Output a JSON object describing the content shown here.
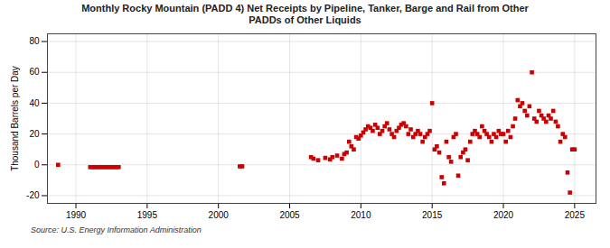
{
  "chart_data": {
    "type": "scatter",
    "title": "Monthly Rocky Mountain (PADD 4) Net Receipts by Pipeline, Tanker, Barge and Rail from Other\nPADDs of Other Liquids",
    "ylabel": "Thousand Barrels per Day",
    "annotations": [
      "Source: U.S. Energy Information Administration"
    ],
    "xlim": [
      1988.0,
      2026.5
    ],
    "ylim": [
      -25,
      85
    ],
    "xticks": [
      1990,
      1995,
      2000,
      2005,
      2010,
      2015,
      2020,
      2025
    ],
    "yticks": [
      -20,
      0,
      20,
      40,
      60,
      80
    ],
    "color": "#CC0000",
    "marker": "square",
    "grid": true,
    "x": [
      1988.75,
      1991.0,
      1991.17,
      1991.33,
      1991.5,
      1991.67,
      1991.83,
      1992.0,
      1992.17,
      1992.33,
      1992.5,
      1992.67,
      1992.83,
      1993.0,
      2001.5,
      2001.67,
      2006.5,
      2006.67,
      2007.0,
      2007.5,
      2007.83,
      2008.0,
      2008.33,
      2008.67,
      2008.83,
      2009.0,
      2009.17,
      2009.33,
      2009.5,
      2009.67,
      2009.83,
      2010.0,
      2010.17,
      2010.33,
      2010.5,
      2010.67,
      2010.83,
      2011.0,
      2011.17,
      2011.33,
      2011.5,
      2011.67,
      2011.83,
      2012.0,
      2012.17,
      2012.33,
      2012.5,
      2012.67,
      2012.83,
      2013.0,
      2013.17,
      2013.33,
      2013.5,
      2013.67,
      2013.83,
      2014.0,
      2014.17,
      2014.33,
      2014.5,
      2014.67,
      2014.83,
      2015.0,
      2015.17,
      2015.33,
      2015.5,
      2015.67,
      2015.83,
      2016.0,
      2016.17,
      2016.33,
      2016.5,
      2016.67,
      2016.83,
      2017.0,
      2017.17,
      2017.33,
      2017.5,
      2017.67,
      2017.83,
      2018.0,
      2018.17,
      2018.33,
      2018.5,
      2018.67,
      2018.83,
      2019.0,
      2019.17,
      2019.33,
      2019.5,
      2019.67,
      2019.83,
      2020.0,
      2020.17,
      2020.33,
      2020.5,
      2020.67,
      2020.83,
      2021.0,
      2021.17,
      2021.33,
      2021.5,
      2021.67,
      2021.83,
      2022.0,
      2022.17,
      2022.33,
      2022.5,
      2022.67,
      2022.83,
      2023.0,
      2023.17,
      2023.33,
      2023.5,
      2023.67,
      2023.83,
      2024.0,
      2024.17,
      2024.33,
      2024.5,
      2024.67,
      2024.83,
      2025.0
    ],
    "values": [
      0.0,
      -1.5,
      -1.5,
      -1.5,
      -1.5,
      -1.5,
      -1.5,
      -1.5,
      -1.5,
      -1.5,
      -1.5,
      -1.5,
      -1.5,
      -1.5,
      -1.0,
      -1.0,
      5.0,
      4.0,
      3.0,
      4.5,
      3.5,
      5.0,
      6.0,
      4.0,
      7.0,
      8.0,
      15.0,
      12.0,
      10.0,
      18.0,
      17.0,
      19.0,
      21.0,
      23.0,
      25.0,
      24.0,
      22.0,
      26.0,
      24.0,
      20.0,
      22.0,
      25.0,
      27.0,
      23.0,
      20.0,
      18.0,
      22.0,
      24.0,
      26.0,
      27.0,
      25.0,
      20.0,
      23.0,
      18.0,
      20.0,
      22.0,
      20.0,
      15.0,
      18.0,
      20.0,
      22.0,
      40.0,
      10.0,
      12.0,
      8.0,
      -8.0,
      -12.0,
      15.0,
      5.0,
      2.0,
      18.0,
      20.0,
      -7.0,
      5.0,
      8.0,
      10.0,
      3.0,
      15.0,
      20.0,
      22.0,
      20.0,
      18.0,
      25.0,
      22.0,
      20.0,
      18.0,
      15.0,
      20.0,
      18.0,
      22.0,
      20.0,
      20.0,
      15.0,
      22.0,
      18.0,
      25.0,
      30.0,
      42.0,
      38.0,
      40.0,
      35.0,
      32.0,
      38.0,
      60.0,
      30.0,
      28.0,
      35.0,
      32.0,
      30.0,
      28.0,
      32.0,
      30.0,
      35.0,
      28.0,
      25.0,
      15.0,
      20.0,
      18.0,
      -5.0,
      -18.0,
      10.0,
      10.0
    ]
  }
}
